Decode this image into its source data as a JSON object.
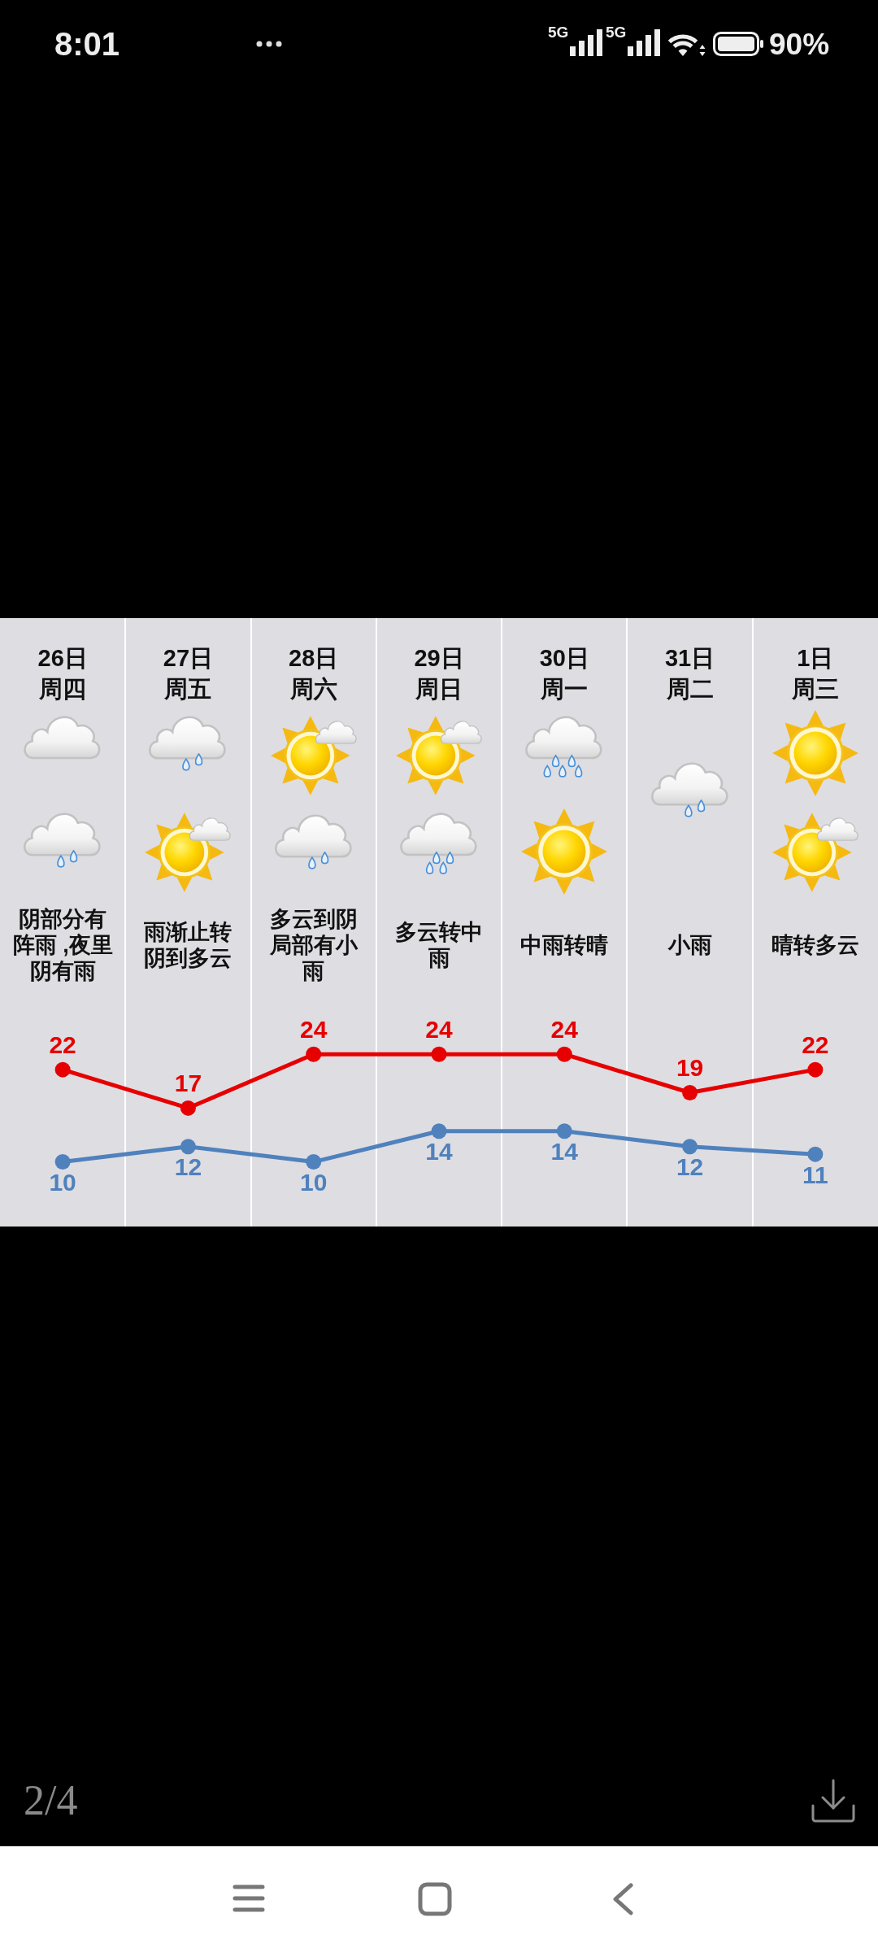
{
  "chart_data": {
    "type": "line",
    "categories": [
      "26日周四",
      "27日周五",
      "28日周六",
      "29日周日",
      "30日周一",
      "31日周二",
      "1日周三"
    ],
    "series": [
      {
        "color": "#e60000",
        "values": [
          22,
          17,
          24,
          24,
          24,
          19,
          22
        ]
      },
      {
        "color": "#4f81bd",
        "values": [
          10,
          12,
          10,
          14,
          14,
          12,
          11
        ]
      }
    ],
    "data_labels": true,
    "marker": "circle",
    "tick_labels": "x",
    "annotations": [
      "阴部分有阵雨 ,夜里阴有雨",
      "雨渐止转阴到多云",
      "多云到阴局部有小雨",
      "多云转中雨",
      "中雨转晴",
      "小雨",
      "晴转多云",
      "8:01",
      "5G",
      "5G",
      "90%",
      "2/4"
    ]
  }
}
